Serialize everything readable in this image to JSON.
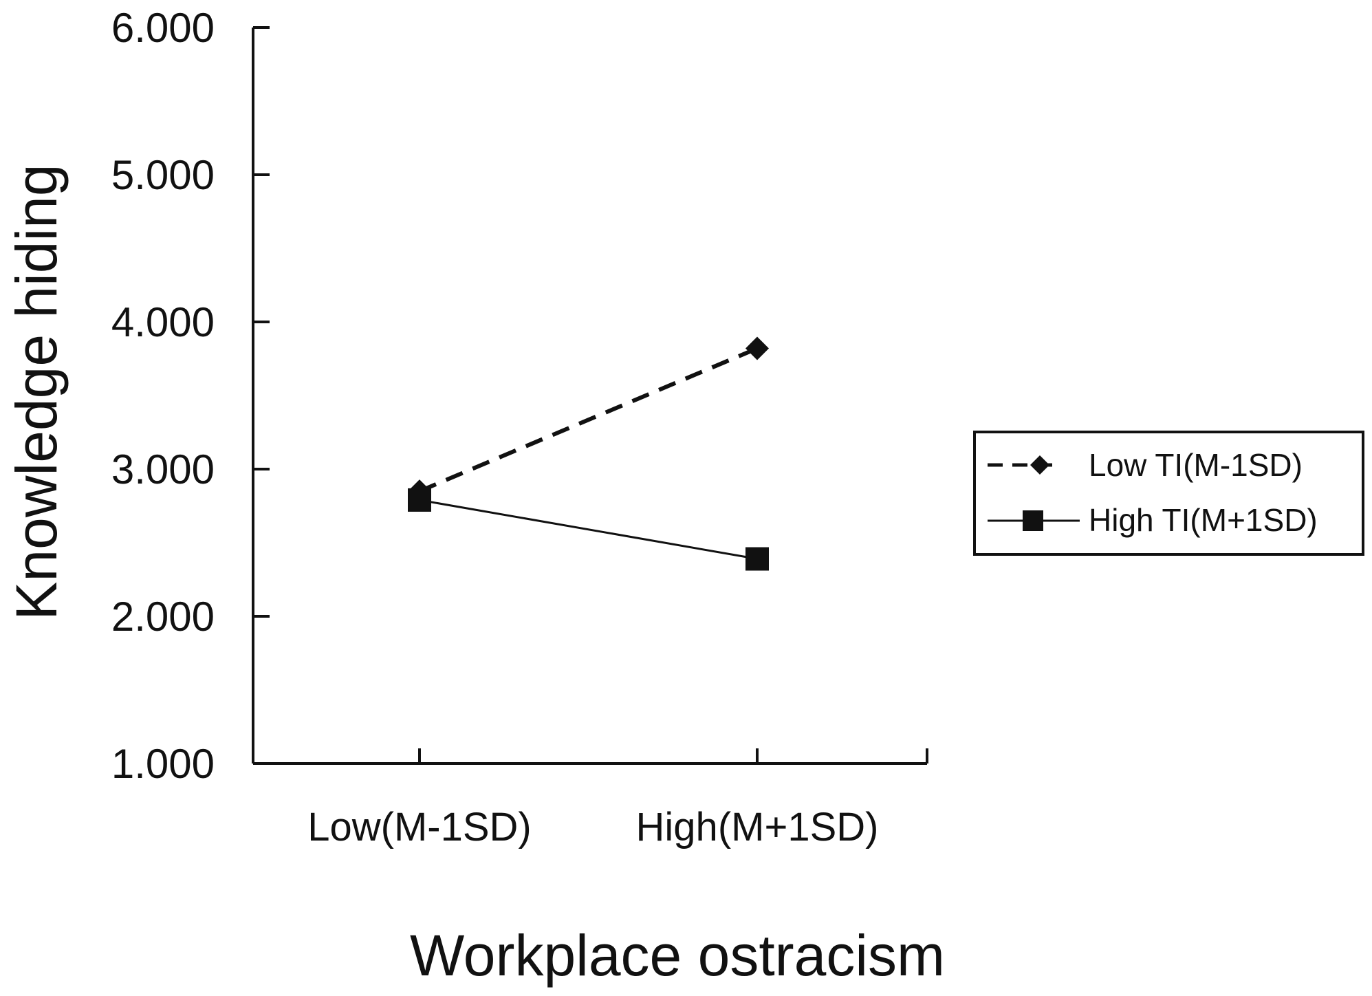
{
  "chart_data": {
    "type": "line",
    "title": "",
    "xlabel": "Workplace ostracism",
    "ylabel": "Knowledge hiding",
    "categories": [
      "Low(M-1SD)",
      "High(M+1SD)"
    ],
    "y_ticks": [
      "1.000",
      "2.000",
      "3.000",
      "4.000",
      "5.000",
      "6.000"
    ],
    "ylim": [
      1,
      6
    ],
    "grid": false,
    "legend_position": "right",
    "series": [
      {
        "name": "Low TI(M-1SD)",
        "values": [
          2.85,
          3.82
        ],
        "marker": "diamond",
        "line_style": "dashed",
        "color": "#111111"
      },
      {
        "name": "High TI(M+1SD)",
        "values": [
          2.79,
          2.39
        ],
        "marker": "square",
        "line_style": "solid",
        "color": "#111111"
      }
    ]
  }
}
